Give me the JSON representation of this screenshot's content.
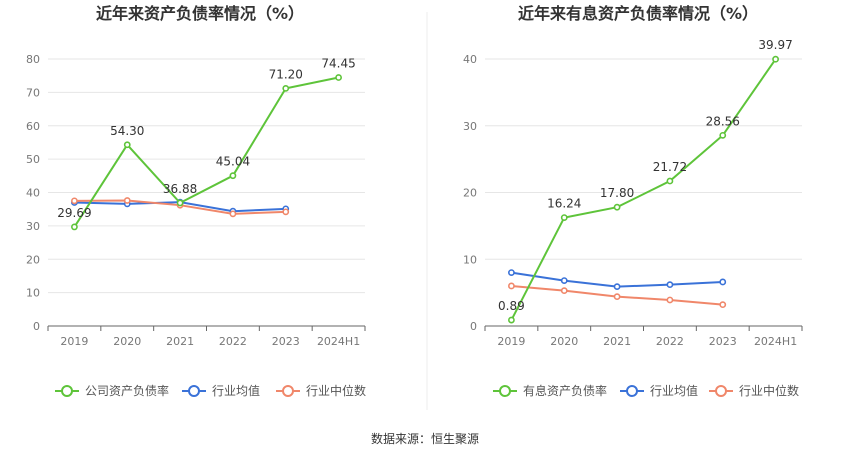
{
  "source_note": "数据来源：恒生聚源",
  "colors": {
    "company": "#5ec43a",
    "industry_avg": "#3a72d8",
    "industry_median": "#f0876a",
    "grid": "#e6e6e6",
    "axis": "#666666"
  },
  "chart_data": [
    {
      "type": "line",
      "title": "近年来资产负债率情况（%）",
      "categories": [
        "2019",
        "2020",
        "2021",
        "2022",
        "2023",
        "2024H1"
      ],
      "ylim": [
        0,
        80
      ],
      "yticks": [
        0,
        10,
        20,
        30,
        40,
        50,
        60,
        70,
        80
      ],
      "grid": true,
      "legend_position": "bottom",
      "series": [
        {
          "name": "公司资产负债率",
          "color_key": "company",
          "values": [
            29.69,
            54.3,
            36.88,
            45.04,
            71.2,
            74.45
          ],
          "labels": [
            "29.69",
            "54.30",
            "36.88",
            "45.04",
            "71.20",
            "74.45"
          ]
        },
        {
          "name": "行业均值",
          "color_key": "industry_avg",
          "values": [
            37.0,
            36.6,
            37.1,
            34.4,
            35.1,
            null
          ]
        },
        {
          "name": "行业中位数",
          "color_key": "industry_median",
          "values": [
            37.5,
            37.6,
            36.2,
            33.6,
            34.2,
            null
          ]
        }
      ]
    },
    {
      "type": "line",
      "title": "近年来有息资产负债率情况（%）",
      "categories": [
        "2019",
        "2020",
        "2021",
        "2022",
        "2023",
        "2024H1"
      ],
      "ylim": [
        0,
        40
      ],
      "yticks": [
        0,
        10,
        20,
        30,
        40
      ],
      "grid": true,
      "legend_position": "bottom",
      "series": [
        {
          "name": "有息资产负债率",
          "color_key": "company",
          "values": [
            0.89,
            16.24,
            17.8,
            21.72,
            28.56,
            39.97
          ],
          "labels": [
            "0.89",
            "16.24",
            "17.80",
            "21.72",
            "28.56",
            "39.97"
          ]
        },
        {
          "name": "行业均值",
          "color_key": "industry_avg",
          "values": [
            8.0,
            6.8,
            5.9,
            6.2,
            6.6,
            null
          ]
        },
        {
          "name": "行业中位数",
          "color_key": "industry_median",
          "values": [
            6.0,
            5.3,
            4.4,
            3.9,
            3.2,
            null
          ]
        }
      ]
    }
  ]
}
